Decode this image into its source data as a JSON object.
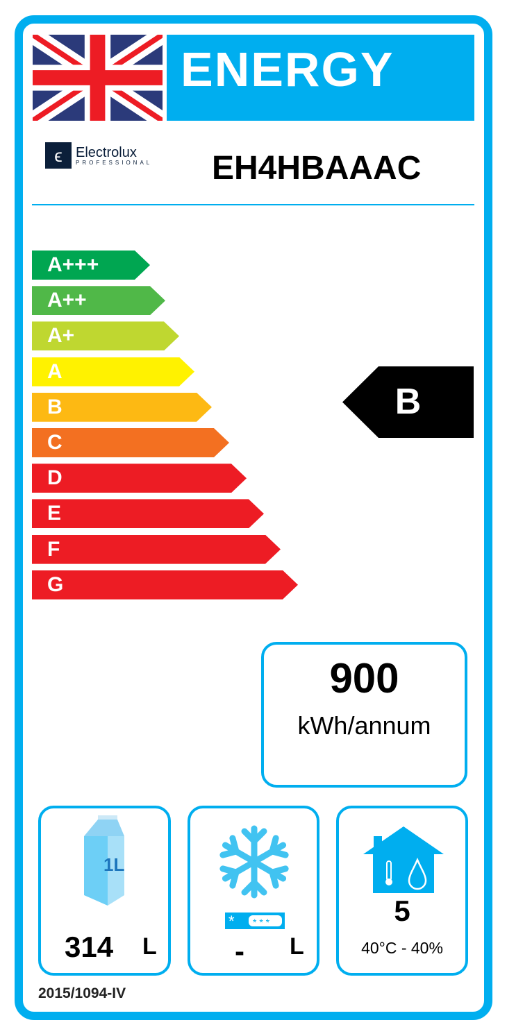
{
  "header": {
    "title": "ENERGY",
    "brand": "Electrolux",
    "brand_sub": "PROFESSIONAL",
    "model": "EH4HBAAAC"
  },
  "scale": [
    {
      "label": "A+++",
      "color": "#00A651"
    },
    {
      "label": "A++",
      "color": "#50B848"
    },
    {
      "label": "A+",
      "color": "#BFD730"
    },
    {
      "label": "A",
      "color": "#FFF200"
    },
    {
      "label": "B",
      "color": "#FDB913"
    },
    {
      "label": "C",
      "color": "#F37021"
    },
    {
      "label": "D",
      "color": "#ED1C24"
    },
    {
      "label": "E",
      "color": "#ED1C24"
    },
    {
      "label": "F",
      "color": "#ED1C24"
    },
    {
      "label": "G",
      "color": "#ED1C24"
    }
  ],
  "rating": "B",
  "consumption": {
    "value": "900",
    "unit": "kWh/annum"
  },
  "chilled": {
    "icon_text": "1L",
    "value": "314",
    "unit": "L"
  },
  "frozen": {
    "value": "-",
    "unit": "L"
  },
  "climate": {
    "class": "5",
    "conditions": "40°C - 40%"
  },
  "regulation": "2015/1094-IV",
  "accent": "#00AEEF"
}
